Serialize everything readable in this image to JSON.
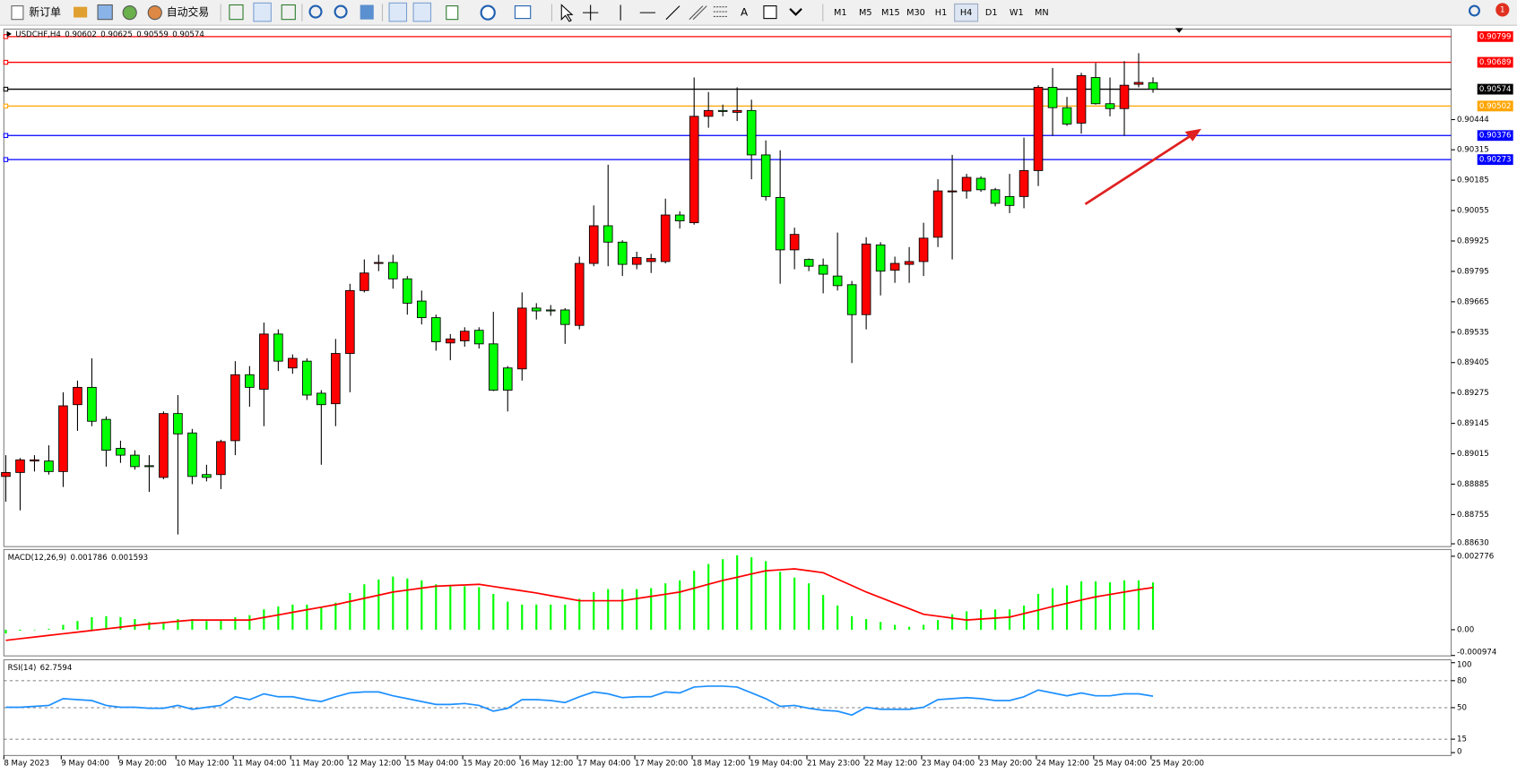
{
  "toolbar": {
    "new_order": "新订单",
    "auto_trading": "自动交易",
    "timeframes": [
      "M1",
      "M5",
      "M15",
      "M30",
      "H1",
      "H4",
      "D1",
      "W1",
      "MN"
    ],
    "active_timeframe": "H4",
    "notifications": "1"
  },
  "chart_data": [
    {
      "type": "candlestick",
      "symbol": "USDCHF,H4",
      "categories": [
        "8 May 2023",
        null,
        null,
        null,
        "9 May 04:00",
        null,
        null,
        null,
        "9 May 20:00",
        null,
        null,
        null,
        "10 May 12:00",
        null,
        null,
        null,
        "11 May 04:00",
        null,
        null,
        null,
        "11 May 20:00",
        null,
        null,
        null,
        "12 May 12:00",
        null,
        null,
        null,
        "15 May 04:00",
        null,
        null,
        null,
        "15 May 20:00",
        null,
        null,
        null,
        "16 May 12:00",
        null,
        null,
        null,
        "17 May 04:00",
        null,
        null,
        null,
        "17 May 20:00",
        null,
        null,
        null,
        "18 May 12:00",
        null,
        null,
        null,
        "19 May 04:00",
        null,
        null,
        null,
        "21 May 23:00",
        null,
        null,
        null,
        "22 May 12:00",
        null,
        null,
        null,
        "23 May 04:00",
        null,
        null,
        null,
        "23 May 20:00",
        null,
        null,
        null,
        "24 May 12:00",
        null,
        null,
        null,
        "25 May 04:00",
        null,
        null,
        null,
        "25 May 20:00"
      ],
      "open": [
        0.88918,
        0.88935,
        0.88984,
        0.88984,
        0.88939,
        0.89225,
        0.89299,
        0.89162,
        0.89038,
        0.89009,
        0.88964,
        0.88914,
        0.89187,
        0.89104,
        0.88926,
        0.88926,
        0.89071,
        0.89353,
        0.89291,
        0.89527,
        0.89382,
        0.89411,
        0.89274,
        0.89229,
        0.89444,
        0.89713,
        0.89829,
        0.89833,
        0.89763,
        0.89668,
        0.89597,
        0.89489,
        0.89498,
        0.89543,
        0.89485,
        0.89382,
        0.89378,
        0.89638,
        0.8963,
        0.8963,
        0.89564,
        0.89829,
        0.8999,
        0.8992,
        0.89825,
        0.89837,
        0.89837,
        0.90036,
        0.90003,
        0.90458,
        0.90483,
        0.90475,
        0.90483,
        0.90293,
        0.90111,
        0.89887,
        0.89846,
        0.89821,
        0.89775,
        0.89738,
        0.8961,
        0.89908,
        0.898,
        0.89825,
        0.89837,
        0.89941,
        0.90135,
        0.90139,
        0.90193,
        0.90144,
        0.90115,
        0.90115,
        0.90226,
        0.90582,
        0.90495,
        0.90429,
        0.90624,
        0.90512,
        0.90491,
        0.90595,
        0.90602
      ],
      "high": [
        0.89009,
        0.88997,
        0.89009,
        0.89051,
        0.89278,
        0.89328,
        0.89423,
        0.89175,
        0.89071,
        0.8903,
        0.89009,
        0.89196,
        0.89266,
        0.89121,
        0.88968,
        0.89075,
        0.89411,
        0.8939,
        0.89576,
        0.89547,
        0.8944,
        0.89423,
        0.89287,
        0.89506,
        0.89742,
        0.89846,
        0.89866,
        0.89866,
        0.89775,
        0.89713,
        0.8961,
        0.89527,
        0.89556,
        0.89556,
        0.89622,
        0.8939,
        0.89705,
        0.89659,
        0.89651,
        0.89638,
        0.89858,
        0.90077,
        0.90251,
        0.89928,
        0.89879,
        0.8987,
        0.90106,
        0.90052,
        0.90624,
        0.90562,
        0.90508,
        0.90582,
        0.90529,
        0.90355,
        0.90313,
        0.89982,
        0.8985,
        0.8985,
        0.89961,
        0.89754,
        0.89941,
        0.8992,
        0.89858,
        0.89899,
        0.90003,
        0.90189,
        0.90293,
        0.90212,
        0.90202,
        0.90152,
        0.90212,
        0.90367,
        0.90591,
        0.90665,
        0.90541,
        0.90644,
        0.90686,
        0.90624,
        0.90694,
        0.90728,
        0.90625
      ],
      "low": [
        0.8881,
        0.88773,
        0.88939,
        0.88926,
        0.88873,
        0.89113,
        0.89133,
        0.8896,
        0.88976,
        0.88947,
        0.88852,
        0.88906,
        0.8867,
        0.88885,
        0.88897,
        0.88864,
        0.89009,
        0.89216,
        0.89133,
        0.89369,
        0.89357,
        0.89245,
        0.88968,
        0.89133,
        0.89278,
        0.89705,
        0.89796,
        0.89721,
        0.8961,
        0.89568,
        0.89456,
        0.89415,
        0.89473,
        0.89465,
        0.89283,
        0.89196,
        0.89328,
        0.89589,
        0.89605,
        0.89485,
        0.89547,
        0.89817,
        0.89817,
        0.89775,
        0.89804,
        0.89788,
        0.89829,
        0.89978,
        0.89995,
        0.90409,
        0.90458,
        0.90438,
        0.90189,
        0.90098,
        0.89742,
        0.89804,
        0.89796,
        0.89701,
        0.89713,
        0.89403,
        0.89547,
        0.89692,
        0.89746,
        0.89746,
        0.89775,
        0.89899,
        0.89846,
        0.90106,
        0.90135,
        0.90073,
        0.90044,
        0.90065,
        0.9016,
        0.90375,
        0.90417,
        0.90384,
        0.90508,
        0.90458,
        0.90375,
        0.90582,
        0.90559
      ],
      "close": [
        0.88935,
        0.88989,
        0.88989,
        0.88939,
        0.8922,
        0.89299,
        0.89154,
        0.8903,
        0.89009,
        0.8896,
        0.8896,
        0.89187,
        0.891,
        0.88918,
        0.88914,
        0.89067,
        0.89353,
        0.89299,
        0.89527,
        0.89411,
        0.89423,
        0.89266,
        0.89225,
        0.89444,
        0.89713,
        0.89788,
        0.89833,
        0.89763,
        0.89659,
        0.89597,
        0.89494,
        0.89506,
        0.89539,
        0.89485,
        0.89287,
        0.89287,
        0.89638,
        0.89626,
        0.89626,
        0.89568,
        0.89829,
        0.8999,
        0.8992,
        0.89825,
        0.89854,
        0.8985,
        0.90036,
        0.90011,
        0.90458,
        0.90483,
        0.90479,
        0.90483,
        0.90293,
        0.90115,
        0.89887,
        0.89953,
        0.89817,
        0.89783,
        0.89734,
        0.8961,
        0.89912,
        0.89796,
        0.89829,
        0.89837,
        0.89937,
        0.90139,
        0.90139,
        0.90197,
        0.90144,
        0.90086,
        0.90077,
        0.90226,
        0.90582,
        0.90495,
        0.90425,
        0.90632,
        0.90512,
        0.90491,
        0.90591,
        0.90603,
        0.90574
      ],
      "up_color": "#ff0000",
      "down_color": "#00ff00",
      "ylim": [
        0.88618,
        0.90831
      ],
      "yticks": [
        0.90444,
        0.90315,
        0.90185,
        0.90055,
        0.89925,
        0.89795,
        0.89665,
        0.89535,
        0.89405,
        0.89275,
        0.89145,
        0.89015,
        0.88885,
        0.88755,
        {
          "value": 0.8863,
          "label": "0.88630"
        }
      ],
      "levels": [
        {
          "value": 0.90799,
          "color": "#ff0000"
        },
        {
          "value": 0.90689,
          "color": "#ff0000"
        },
        {
          "value": 0.90502,
          "color": "#ffa500"
        },
        {
          "value": 0.90376,
          "color": "#0000ff"
        },
        {
          "value": 0.90273,
          "color": "#0000ff"
        }
      ]
    },
    {
      "type": "macd",
      "title": "MACD(12,26,9)",
      "histogram": [
        -0.000146,
        -3.7e-05,
        0,
        3.7e-05,
        0.000183,
        0.000329,
        0.000475,
        0.000511,
        0.000475,
        0.000402,
        0.000292,
        0.000292,
        0.000402,
        0.000402,
        0.000329,
        0.000365,
        0.000475,
        0.000548,
        0.000767,
        0.000876,
        0.000949,
        0.000949,
        0.000876,
        0.001022,
        0.001387,
        0.001716,
        0.001898,
        0.002008,
        0.001935,
        0.001862,
        0.001716,
        0.001643,
        0.001643,
        0.001606,
        0.001351,
        0.001059,
        0.000949,
        0.000949,
        0.000949,
        0.000949,
        0.001168,
        0.001424,
        0.001533,
        0.001533,
        0.001533,
        0.00157,
        0.001752,
        0.001862,
        0.002227,
        0.002482,
        0.002665,
        0.002811,
        0.002738,
        0.002592,
        0.00219,
        0.001971,
        0.001752,
        0.001314,
        0.000913,
        0.000511,
        0.000402,
        0.000292,
        0.000183,
        0.00011,
        0.000183,
        0.000365,
        0.000584,
        0.000694,
        0.000767,
        0.000767,
        0.000767,
        0.000913,
        0.001351,
        0.00157,
        0.001679,
        0.001825,
        0.001825,
        0.001789,
        0.001862,
        0.001862,
        0.001786
      ],
      "signal": [
        -0.000402,
        -0.000339,
        -0.000277,
        -0.000215,
        -0.000153,
        -9.1e-05,
        -2.9e-05,
        3.3e-05,
        9.5e-05,
        0.000157,
        0.000219,
        0.000266,
        0.000318,
        0.000365,
        0.000365,
        0.000365,
        0.000365,
        0.000365,
        0.000464,
        0.000558,
        0.000657,
        0.000756,
        0.00085,
        0.000949,
        0.001068,
        0.001186,
        0.001305,
        0.001424,
        0.001497,
        0.00157,
        0.001643,
        0.001668,
        0.00169,
        0.001716,
        0.001633,
        0.001551,
        0.001469,
        0.001387,
        0.001288,
        0.001194,
        0.001095,
        0.001095,
        0.001095,
        0.001095,
        0.001177,
        0.001259,
        0.001341,
        0.001424,
        0.00157,
        0.001716,
        0.001862,
        0.001982,
        0.002106,
        0.002227,
        0.002263,
        0.0023,
        0.002227,
        0.002154,
        0.00191,
        0.001668,
        0.001424,
        0.001214,
        0.001004,
        0.000794,
        0.000584,
        0.000511,
        0.000438,
        0.000365,
        0.000402,
        0.000438,
        0.000475,
        0.00061,
        0.000741,
        0.000876,
        0.000996,
        0.001121,
        0.001241,
        0.001332,
        0.001424,
        0.001515,
        0.001593
      ],
      "histogram_color": "#00ff00",
      "signal_color": "#ff0000",
      "ylim": [
        -0.00099,
        0.00303
      ],
      "yticks": [
        0.002776,
        {
          "value": 0,
          "label": "0.00"
        },
        -0.000974
      ]
    },
    {
      "type": "rsi",
      "title": "RSI(14)",
      "values": [
        50.4,
        50.4,
        51.4,
        52.5,
        60.0,
        58.9,
        57.9,
        52.5,
        50.4,
        50.4,
        49.3,
        49.3,
        52.5,
        48.2,
        50.4,
        52.5,
        62.1,
        58.9,
        65.4,
        62.1,
        62.1,
        58.9,
        56.8,
        62.1,
        66.4,
        67.5,
        67.5,
        63.2,
        60.0,
        56.8,
        53.6,
        53.6,
        54.6,
        52.5,
        46.1,
        49.3,
        58.9,
        58.9,
        57.9,
        55.7,
        62.1,
        67.5,
        65.4,
        61.1,
        62.1,
        62.1,
        67.5,
        66.4,
        72.9,
        73.9,
        73.9,
        72.9,
        66.4,
        60.0,
        51.4,
        52.5,
        49.3,
        47.1,
        46.1,
        41.8,
        50.4,
        48.2,
        48.2,
        48.2,
        50.4,
        58.9,
        60.0,
        61.1,
        60.0,
        57.9,
        57.9,
        62.1,
        69.6,
        66.4,
        63.2,
        66.4,
        63.2,
        63.2,
        65.4,
        65.4,
        62.7594
      ],
      "color": "#1e90ff",
      "ylim": [
        0,
        100
      ],
      "yticks": [
        100,
        80,
        50,
        15,
        0
      ]
    }
  ]
}
